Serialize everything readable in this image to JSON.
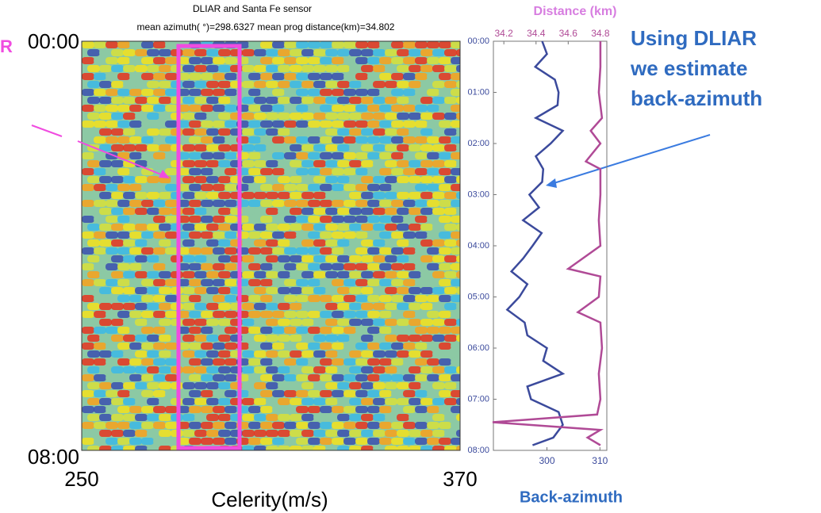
{
  "chart_data": [
    {
      "type": "heatmap",
      "title": "DLIAR and Santa Fe sensor",
      "subtitle": "mean azimuth( °)=298.6327  mean prog distance(km)=34.802",
      "x_label": "Celerity(m/s)",
      "annotation": "R",
      "xlim": [
        250,
        370
      ],
      "xticks": [
        250,
        370
      ],
      "ylim": [
        0,
        8
      ],
      "yticks": [
        {
          "value": 0,
          "label": "00:00"
        },
        {
          "value": 8,
          "label": "08:00"
        }
      ]
    },
    {
      "type": "line",
      "note_lines": [
        "Using DLIAR",
        "we estimate",
        "back-azimuth"
      ],
      "x_label": "Back-azimuth",
      "x2_label": "Distance (km)",
      "xlim": [
        289.9,
        311.3
      ],
      "xticks": [
        300,
        310
      ],
      "x2lim": [
        34.135,
        34.84
      ],
      "x2ticks": [
        34.2,
        34.4,
        34.6,
        34.8
      ],
      "ylim": [
        0,
        8
      ],
      "yticks": [
        {
          "value": 0,
          "label": "00:00"
        },
        {
          "value": 1,
          "label": "01:00"
        },
        {
          "value": 2,
          "label": "02:00"
        },
        {
          "value": 3,
          "label": "03:00"
        },
        {
          "value": 4,
          "label": "04:00"
        },
        {
          "value": 5,
          "label": "05:00"
        },
        {
          "value": 6,
          "label": "06:00"
        },
        {
          "value": 7,
          "label": "07:00"
        },
        {
          "value": 8,
          "label": "08:00"
        }
      ],
      "series": [
        {
          "name": "Back-azimuth",
          "color": "#3b4a9c",
          "axis": "x",
          "times": [
            0,
            0.25,
            0.5,
            0.75,
            1.0,
            1.25,
            1.5,
            1.75,
            2.0,
            2.25,
            2.5,
            2.75,
            3.0,
            3.25,
            3.5,
            3.75,
            4.0,
            4.25,
            4.5,
            4.75,
            5.0,
            5.25,
            5.5,
            5.75,
            6.0,
            6.25,
            6.5,
            6.75,
            7.0,
            7.25,
            7.5,
            7.75,
            7.9
          ],
          "values": [
            299.1,
            300,
            297.8,
            301.5,
            302.2,
            302,
            297.9,
            303,
            300.7,
            297.9,
            299.3,
            299.1,
            296.7,
            298.5,
            295.5,
            299,
            297.3,
            295.5,
            293.3,
            296.3,
            294.8,
            292.5,
            295.8,
            296.3,
            300,
            299.3,
            303,
            296.3,
            297,
            302.2,
            303,
            301.2,
            297.3
          ]
        },
        {
          "name": "Distance (km)",
          "color": "#b04a96",
          "axis": "x2",
          "times": [
            0,
            0.5,
            1.0,
            1.5,
            1.75,
            2.0,
            2.35,
            2.5,
            3.0,
            3.5,
            4.0,
            4.45,
            4.6,
            5.0,
            5.3,
            5.5,
            6.0,
            6.5,
            7.0,
            7.3,
            7.45,
            7.6,
            7.75,
            7.9
          ],
          "values": [
            34.8,
            34.8,
            34.79,
            34.81,
            34.74,
            34.8,
            34.71,
            34.8,
            34.8,
            34.79,
            34.8,
            34.6,
            34.8,
            34.79,
            34.66,
            34.8,
            34.81,
            34.79,
            34.8,
            34.78,
            34.13,
            34.8,
            34.72,
            34.8
          ]
        }
      ]
    }
  ]
}
